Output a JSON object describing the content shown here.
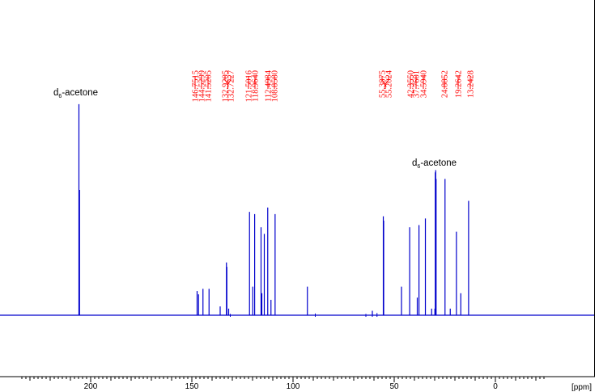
{
  "chart_data": {
    "type": "line",
    "title": "",
    "xlabel": "[ppm]",
    "ylabel": "",
    "x_reversed": true,
    "xlim": [
      234,
      -24
    ],
    "grid": false,
    "x_ticks": [
      200,
      150,
      100,
      50,
      0
    ],
    "series": [
      {
        "peaks": [
          {
            "x": 205.8,
            "y": 0.96
          },
          {
            "x": 205.5,
            "y": 0.57
          },
          {
            "x": 147.4,
            "y": 0.11
          },
          {
            "x": 146.7,
            "y": 0.095
          },
          {
            "x": 144.5,
            "y": 0.12
          },
          {
            "x": 141.5,
            "y": 0.12
          },
          {
            "x": 136.0,
            "y": 0.04
          },
          {
            "x": 132.9,
            "y": 0.24
          },
          {
            "x": 132.7,
            "y": 0.22
          },
          {
            "x": 131.8,
            "y": 0.03
          },
          {
            "x": 121.5,
            "y": 0.47
          },
          {
            "x": 119.9,
            "y": 0.13
          },
          {
            "x": 118.96,
            "y": 0.46
          },
          {
            "x": 115.8,
            "y": 0.4
          },
          {
            "x": 115.4,
            "y": 0.1
          },
          {
            "x": 114.2,
            "y": 0.37
          },
          {
            "x": 112.5,
            "y": 0.49
          },
          {
            "x": 110.9,
            "y": 0.07
          },
          {
            "x": 108.86,
            "y": 0.46
          },
          {
            "x": 92.9,
            "y": 0.13
          },
          {
            "x": 60.8,
            "y": 0.02
          },
          {
            "x": 55.39,
            "y": 0.45
          },
          {
            "x": 55.2,
            "y": 0.43
          },
          {
            "x": 46.4,
            "y": 0.13
          },
          {
            "x": 42.36,
            "y": 0.4
          },
          {
            "x": 38.6,
            "y": 0.08
          },
          {
            "x": 37.76,
            "y": 0.41
          },
          {
            "x": 34.59,
            "y": 0.44
          },
          {
            "x": 31.5,
            "y": 0.03
          },
          {
            "x": 29.9,
            "y": 0.03
          },
          {
            "x": 29.7,
            "y": 0.65
          },
          {
            "x": 29.5,
            "y": 0.66
          },
          {
            "x": 29.3,
            "y": 0.62
          },
          {
            "x": 24.89,
            "y": 0.62
          },
          {
            "x": 22.3,
            "y": 0.03
          },
          {
            "x": 19.26,
            "y": 0.38
          },
          {
            "x": 17.1,
            "y": 0.1
          },
          {
            "x": 13.24,
            "y": 0.52
          }
        ]
      }
    ],
    "peak_labels": [
      "146.7515",
      "144.5299",
      "141.5205",
      "132.9205",
      "132.7227",
      "121.5016",
      "118.9640",
      "112.4984",
      "108.8580",
      "55.3875",
      "55.2024",
      "42.3550",
      "37.7601",
      "34.5940",
      "24.8852",
      "19.2642",
      "13.2428"
    ],
    "annotations": [
      {
        "base": "d",
        "sub": "6",
        "rest": "-acetone",
        "x": 205.5
      },
      {
        "base": "d",
        "sub": "6",
        "rest": "-acetone",
        "x": 29.5
      }
    ],
    "colors": {
      "spectrum": "#0000cc",
      "peak_labels": "#ff0000",
      "axis": "#000000"
    }
  }
}
